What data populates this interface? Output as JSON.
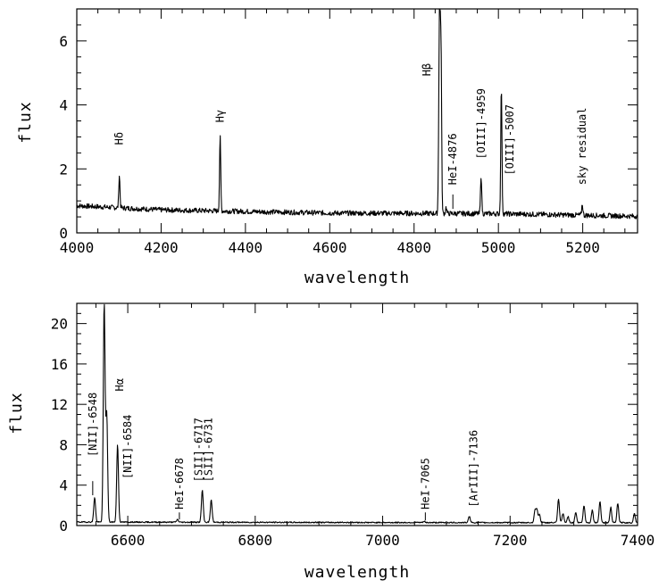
{
  "chart_data": [
    {
      "type": "line",
      "xlabel": "wavelength",
      "ylabel": "flux",
      "xlim": [
        4000,
        5330
      ],
      "ylim": [
        0,
        7
      ],
      "grid": false,
      "x_ticks_major": [
        4000,
        4200,
        4400,
        4600,
        4800,
        5000,
        5200
      ],
      "x_ticks_minor_step": 50,
      "y_ticks_major": [
        0,
        2,
        4,
        6
      ],
      "y_ticks_minor_step": 0.5,
      "continuum": [
        [
          4000,
          0.85
        ],
        [
          4200,
          0.72
        ],
        [
          4600,
          0.62
        ],
        [
          5000,
          0.6
        ],
        [
          5330,
          0.52
        ]
      ],
      "noise": 0.08,
      "lines": [
        {
          "x": 4101,
          "peak": 1.8
        },
        {
          "x": 4340,
          "peak": 3.0
        },
        {
          "x": 4861,
          "peak": 6.4
        },
        {
          "x": 4864,
          "peak": 5.6
        },
        {
          "x": 4859,
          "peak": 3.1
        },
        {
          "x": 4876,
          "peak": 0.8
        },
        {
          "x": 4959,
          "peak": 1.8
        },
        {
          "x": 5007,
          "peak": 4.6
        },
        {
          "x": 5199,
          "peak": 0.9
        }
      ],
      "annotations": [
        {
          "text": "Hδ",
          "x": 4101,
          "y": 2.75,
          "rotate": true
        },
        {
          "text": "Hγ",
          "x": 4340,
          "y": 3.45,
          "rotate": true
        },
        {
          "text": "Hβ",
          "x": 4830,
          "y": 4.9,
          "rotate": true
        },
        {
          "text": "HeI-4876",
          "x": 4892,
          "y": 1.5,
          "rotate": true,
          "marker": [
            0.75,
            1.2
          ]
        },
        {
          "text": "[OIII]-4959",
          "x": 4959,
          "y": 2.3,
          "rotate": true
        },
        {
          "text": "[OIII]-5007",
          "x": 5027,
          "y": 1.8,
          "rotate": true
        },
        {
          "text": "sky residual",
          "x": 5199,
          "y": 1.5,
          "rotate": true
        }
      ]
    },
    {
      "type": "line",
      "xlabel": "wavelength",
      "ylabel": "flux",
      "xlim": [
        6520,
        7400
      ],
      "ylim": [
        0,
        22
      ],
      "grid": false,
      "x_ticks_major": [
        6600,
        6800,
        7000,
        7200,
        7400
      ],
      "x_ticks_minor_step": 50,
      "y_ticks_major": [
        0,
        4,
        8,
        12,
        16,
        20
      ],
      "y_ticks_minor_step": 1,
      "continuum": [
        [
          6520,
          0.35
        ],
        [
          7000,
          0.3
        ],
        [
          7400,
          0.28
        ]
      ],
      "noise": 0.06,
      "lines": [
        {
          "x": 6548,
          "peak": 2.8
        },
        {
          "x": 6563,
          "peak": 22.0
        },
        {
          "x": 6567,
          "peak": 11.0
        },
        {
          "x": 6584,
          "peak": 8.0
        },
        {
          "x": 6678,
          "peak": 0.6
        },
        {
          "x": 6717,
          "peak": 3.5
        },
        {
          "x": 6731,
          "peak": 2.5
        },
        {
          "x": 7065,
          "peak": 0.4
        },
        {
          "x": 7136,
          "peak": 0.9
        },
        {
          "x": 7239,
          "peak": 1.4
        },
        {
          "x": 7242,
          "peak": 1.6
        },
        {
          "x": 7246,
          "peak": 1.1
        },
        {
          "x": 7276,
          "peak": 2.6
        },
        {
          "x": 7283,
          "peak": 1.2
        },
        {
          "x": 7291,
          "peak": 0.9
        },
        {
          "x": 7303,
          "peak": 1.3
        },
        {
          "x": 7316,
          "peak": 2.0
        },
        {
          "x": 7329,
          "peak": 1.5
        },
        {
          "x": 7341,
          "peak": 2.4
        },
        {
          "x": 7358,
          "peak": 1.8
        },
        {
          "x": 7369,
          "peak": 2.2
        },
        {
          "x": 7395,
          "peak": 1.2
        }
      ],
      "annotations": [
        {
          "text": "[NII]-6548",
          "x": 6545,
          "y": 6.8,
          "rotate": true,
          "marker": [
            3.0,
            4.4
          ]
        },
        {
          "text": "Hα",
          "x": 6587,
          "y": 13.3,
          "rotate": true
        },
        {
          "text": "[NII]-6584",
          "x": 6600,
          "y": 4.6,
          "rotate": true
        },
        {
          "text": "HeI-6678",
          "x": 6681,
          "y": 1.6,
          "rotate": true,
          "marker": [
            0.6,
            1.3
          ]
        },
        {
          "text": "[SII]-6717",
          "x": 6711,
          "y": 4.3,
          "rotate": true
        },
        {
          "text": "[SII]-6731",
          "x": 6727,
          "y": 4.3,
          "rotate": true
        },
        {
          "text": "HeI-7065",
          "x": 7067,
          "y": 1.6,
          "rotate": true,
          "marker": [
            0.5,
            1.3
          ]
        },
        {
          "text": "[ArIII]-7136",
          "x": 7143,
          "y": 1.8,
          "rotate": true
        }
      ]
    }
  ]
}
